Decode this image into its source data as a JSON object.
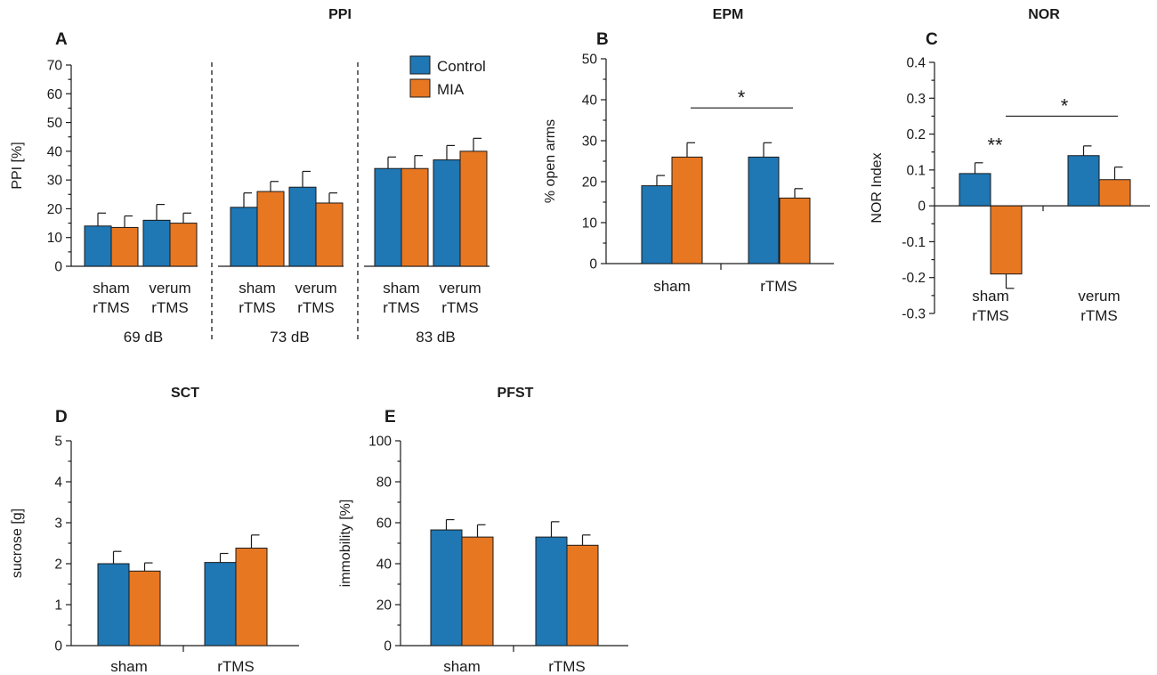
{
  "colors": {
    "control": "#1f77b4",
    "mia": "#e87722",
    "sig_mia": "#e87722",
    "sig_black": "#1a1a1a"
  },
  "legend": {
    "entries": [
      "Control",
      "MIA"
    ]
  },
  "chart_data": [
    {
      "id": "A",
      "type": "bar",
      "letter": "A",
      "title": "PPI",
      "ylabel": "PPI [%]",
      "ylim": [
        0,
        70
      ],
      "yticks": [
        0,
        10,
        20,
        30,
        40,
        50,
        60,
        70
      ],
      "ytick_labels": [
        "0",
        "10",
        "20",
        "30",
        "40",
        "50",
        "60",
        "70"
      ],
      "groups": [
        {
          "label": "69 dB",
          "categories": [
            [
              "sham",
              "rTMS"
            ],
            [
              "verum",
              "rTMS"
            ]
          ],
          "series": [
            {
              "name": "Control",
              "values": [
                14,
                16
              ],
              "errors": [
                4.5,
                5.5
              ]
            },
            {
              "name": "MIA",
              "values": [
                13.5,
                15
              ],
              "errors": [
                4,
                3.5
              ]
            }
          ]
        },
        {
          "label": "73 dB",
          "categories": [
            [
              "sham",
              "rTMS"
            ],
            [
              "verum",
              "rTMS"
            ]
          ],
          "series": [
            {
              "name": "Control",
              "values": [
                20.5,
                27.5
              ],
              "errors": [
                5,
                5.5
              ]
            },
            {
              "name": "MIA",
              "values": [
                26,
                22
              ],
              "errors": [
                3.5,
                3.5
              ]
            }
          ]
        },
        {
          "label": "83 dB",
          "categories": [
            [
              "sham",
              "rTMS"
            ],
            [
              "verum",
              "rTMS"
            ]
          ],
          "series": [
            {
              "name": "Control",
              "values": [
                34,
                37
              ],
              "errors": [
                4,
                5
              ]
            },
            {
              "name": "MIA",
              "values": [
                34,
                40
              ],
              "errors": [
                4.5,
                4.5
              ]
            }
          ]
        }
      ]
    },
    {
      "id": "B",
      "type": "bar",
      "letter": "B",
      "title": "EPM",
      "ylabel": "% open arms",
      "ylim": [
        0,
        50
      ],
      "yticks": [
        0,
        10,
        20,
        30,
        40,
        50
      ],
      "ytick_labels": [
        "0",
        "10",
        "20",
        "30",
        "40",
        "50"
      ],
      "categories": [
        [
          "sham"
        ],
        [
          "rTMS"
        ]
      ],
      "series": [
        {
          "name": "Control",
          "values": [
            19,
            26
          ],
          "errors": [
            2.5,
            3.5
          ]
        },
        {
          "name": "MIA",
          "values": [
            26,
            16
          ],
          "errors": [
            3.5,
            2.3
          ]
        }
      ],
      "annotations": [
        {
          "text": "*",
          "bracket": [
            0.5,
            1.5
          ],
          "y": 38,
          "color": "mia"
        }
      ]
    },
    {
      "id": "C",
      "type": "bar",
      "letter": "C",
      "title": "NOR",
      "ylabel": "NOR Index",
      "ylim": [
        -0.3,
        0.4
      ],
      "yticks": [
        -0.3,
        -0.2,
        -0.1,
        0,
        0.1,
        0.2,
        0.3,
        0.4
      ],
      "ytick_labels": [
        "-0.3",
        "-0.2",
        "-0.1",
        "0",
        "0.1",
        "0.2",
        "0.3",
        "0.4"
      ],
      "categories": [
        [
          "sham",
          "rTMS"
        ],
        [
          "verum",
          "rTMS"
        ]
      ],
      "series": [
        {
          "name": "Control",
          "values": [
            0.09,
            0.14
          ],
          "errors": [
            0.03,
            0.027
          ]
        },
        {
          "name": "MIA",
          "values": [
            -0.19,
            0.073
          ],
          "errors": [
            0.04,
            0.035
          ]
        }
      ],
      "annotations": [
        {
          "text": "**",
          "at": 0,
          "y": 0.17,
          "color": "sig_black"
        },
        {
          "text": "*",
          "bracket": [
            0.5,
            1.5
          ],
          "y": 0.25,
          "color": "mia"
        }
      ]
    },
    {
      "id": "D",
      "type": "bar",
      "letter": "D",
      "title": "SCT",
      "ylabel": "sucrose [g]",
      "ylim": [
        0,
        5
      ],
      "yticks": [
        0,
        1,
        2,
        3,
        4,
        5
      ],
      "ytick_labels": [
        "0",
        "1",
        "2",
        "3",
        "4",
        "5"
      ],
      "categories": [
        [
          "sham"
        ],
        [
          "rTMS"
        ]
      ],
      "series": [
        {
          "name": "Control",
          "values": [
            2.0,
            2.03
          ],
          "errors": [
            0.3,
            0.22
          ]
        },
        {
          "name": "MIA",
          "values": [
            1.82,
            2.38
          ],
          "errors": [
            0.2,
            0.32
          ]
        }
      ]
    },
    {
      "id": "E",
      "type": "bar",
      "letter": "E",
      "title": "PFST",
      "ylabel": "immobility [%]",
      "ylim": [
        0,
        100
      ],
      "yticks": [
        0,
        20,
        40,
        60,
        80,
        100
      ],
      "ytick_labels": [
        "0",
        "20",
        "40",
        "60",
        "80",
        "100"
      ],
      "categories": [
        [
          "sham"
        ],
        [
          "rTMS"
        ]
      ],
      "series": [
        {
          "name": "Control",
          "values": [
            56.5,
            53
          ],
          "errors": [
            5,
            7.5
          ]
        },
        {
          "name": "MIA",
          "values": [
            53,
            49
          ],
          "errors": [
            6,
            5
          ]
        }
      ]
    }
  ]
}
